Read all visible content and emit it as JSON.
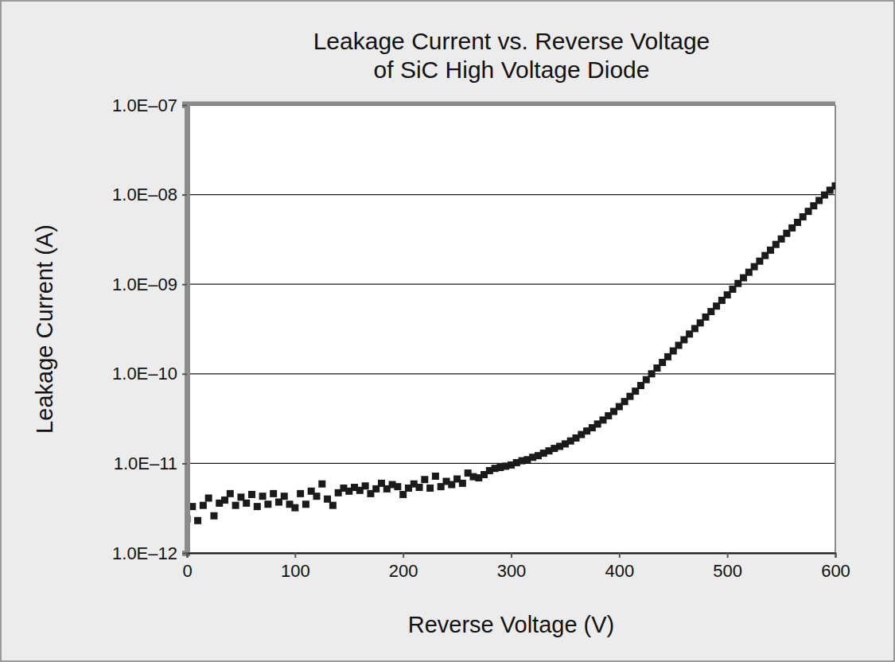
{
  "chart_data": {
    "type": "scatter",
    "title": "Leakage Current vs. Reverse Voltage\nof SiC High Voltage Diode",
    "x_label": "Reverse Voltage (V)",
    "y_label": "Leakage Current (A)",
    "log": "y",
    "grid": true,
    "marker": "square",
    "color": "#1a1a1a",
    "xlim": [
      0,
      600
    ],
    "xticks": [
      0,
      100,
      200,
      300,
      400,
      500,
      600
    ],
    "ylim": [
      1e-12,
      1e-07
    ],
    "yticks": [
      {
        "value": 1e-12,
        "label": "1.0E–12"
      },
      {
        "value": 1e-11,
        "label": "1.0E–11"
      },
      {
        "value": 1e-10,
        "label": "1.0E–10"
      },
      {
        "value": 1e-09,
        "label": "1.0E–09"
      },
      {
        "value": 1e-08,
        "label": "1.0E–08"
      },
      {
        "value": 1e-07,
        "label": "1.0E–07"
      }
    ],
    "x": [
      0,
      5,
      10,
      15,
      20,
      25,
      30,
      35,
      40,
      45,
      50,
      55,
      60,
      65,
      70,
      75,
      80,
      85,
      90,
      95,
      100,
      105,
      110,
      115,
      120,
      125,
      130,
      135,
      140,
      145,
      150,
      155,
      160,
      165,
      170,
      175,
      180,
      185,
      190,
      195,
      200,
      205,
      210,
      215,
      220,
      225,
      230,
      235,
      240,
      245,
      250,
      255,
      260,
      265,
      270,
      275,
      280,
      285,
      290,
      295,
      300,
      305,
      310,
      315,
      320,
      325,
      330,
      335,
      340,
      345,
      350,
      355,
      360,
      365,
      370,
      375,
      380,
      385,
      390,
      395,
      400,
      405,
      410,
      415,
      420,
      425,
      430,
      435,
      440,
      445,
      450,
      455,
      460,
      465,
      470,
      475,
      480,
      485,
      490,
      495,
      500,
      505,
      510,
      515,
      520,
      525,
      530,
      535,
      540,
      545,
      550,
      555,
      560,
      565,
      570,
      575,
      580,
      585,
      590,
      595,
      600
    ],
    "values": [
      2.4e-12,
      3.3e-12,
      2.3e-12,
      3.4e-12,
      4.1e-12,
      2.6e-12,
      3.6e-12,
      3.9e-12,
      4.6e-12,
      3.4e-12,
      4.2e-12,
      3.6e-12,
      4.5e-12,
      3.3e-12,
      4.3e-12,
      3.5e-12,
      4.6e-12,
      3.7e-12,
      4.3e-12,
      3.5e-12,
      3.2e-12,
      4.6e-12,
      3.5e-12,
      4.9e-12,
      4.3e-12,
      5.9e-12,
      4e-12,
      3.4e-12,
      4.7e-12,
      5.3e-12,
      4.9e-12,
      5.4e-12,
      5e-12,
      5.6e-12,
      4.6e-12,
      5.2e-12,
      6e-12,
      5.2e-12,
      5.8e-12,
      5.5e-12,
      4.5e-12,
      5.3e-12,
      5.9e-12,
      5.4e-12,
      6.6e-12,
      5.3e-12,
      7.2e-12,
      5.5e-12,
      6.3e-12,
      5.8e-12,
      6.7e-12,
      6e-12,
      7.8e-12,
      7.1e-12,
      6.9e-12,
      7.5e-12,
      8.3e-12,
      8.8e-12,
      9e-12,
      9.3e-12,
      9.6e-12,
      1.02e-11,
      1.07e-11,
      1.1e-11,
      1.17e-11,
      1.22e-11,
      1.3e-11,
      1.38e-11,
      1.47e-11,
      1.55e-11,
      1.65e-11,
      1.78e-11,
      1.92e-11,
      2.1e-11,
      2.3e-11,
      2.5e-11,
      2.75e-11,
      3.05e-11,
      3.4e-11,
      3.8e-11,
      4.3e-11,
      4.9e-11,
      5.6e-11,
      6.4e-11,
      7.4e-11,
      8.6e-11,
      1e-10,
      1.16e-10,
      1.34e-10,
      1.55e-10,
      1.8e-10,
      2.08e-10,
      2.4e-10,
      2.78e-10,
      3.2e-10,
      3.7e-10,
      4.3e-10,
      4.95e-10,
      5.7e-10,
      6.6e-10,
      7.6e-10,
      8.8e-10,
      1.02e-09,
      1.18e-09,
      1.36e-09,
      1.57e-09,
      1.81e-09,
      2.09e-09,
      2.4e-09,
      2.78e-09,
      3.2e-09,
      3.7e-09,
      4.25e-09,
      4.9e-09,
      5.65e-09,
      6.5e-09,
      7.5e-09,
      8.6e-09,
      9.9e-09,
      1.12e-08,
      1.25e-08
    ]
  }
}
